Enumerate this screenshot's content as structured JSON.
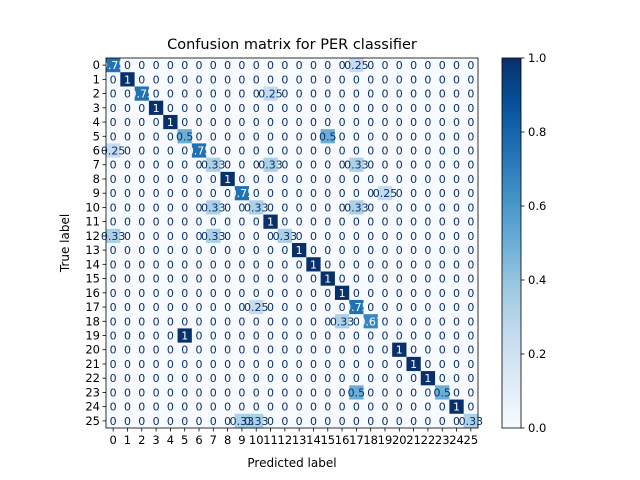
{
  "chart_data": {
    "type": "heatmap",
    "title": "Confusion matrix for PER classifier",
    "xlabel": "Predicted label",
    "ylabel": "True label",
    "x_tick_labels": [
      "0",
      "1",
      "2",
      "3",
      "4",
      "5",
      "6",
      "7",
      "8",
      "9",
      "10",
      "11",
      "12",
      "13",
      "14",
      "15",
      "16",
      "17",
      "18",
      "19",
      "20",
      "21",
      "22",
      "23",
      "24",
      "25"
    ],
    "y_tick_labels": [
      "0",
      "1",
      "2",
      "3",
      "4",
      "5",
      "6",
      "7",
      "8",
      "9",
      "10",
      "11",
      "12",
      "13",
      "14",
      "15",
      "16",
      "17",
      "18",
      "19",
      "20",
      "21",
      "22",
      "23",
      "24",
      "25"
    ],
    "colormap": "Blues",
    "color_range": [
      0.0,
      1.0
    ],
    "colorbar_ticks": [
      "0.0",
      "0.2",
      "0.4",
      "0.6",
      "0.8",
      "1.0"
    ],
    "colorbar_tick_values": [
      0.0,
      0.2,
      0.4,
      0.6,
      0.8,
      1.0
    ],
    "matrix": [
      [
        0.75,
        0,
        0,
        0,
        0,
        0,
        0,
        0,
        0,
        0,
        0,
        0,
        0,
        0,
        0,
        0,
        0,
        0.25,
        0,
        0,
        0,
        0,
        0,
        0,
        0,
        0
      ],
      [
        0,
        1,
        0,
        0,
        0,
        0,
        0,
        0,
        0,
        0,
        0,
        0,
        0,
        0,
        0,
        0,
        0,
        0,
        0,
        0,
        0,
        0,
        0,
        0,
        0,
        0
      ],
      [
        0,
        0,
        0.75,
        0,
        0,
        0,
        0,
        0,
        0,
        0,
        0,
        0.25,
        0,
        0,
        0,
        0,
        0,
        0,
        0,
        0,
        0,
        0,
        0,
        0,
        0,
        0
      ],
      [
        0,
        0,
        0,
        1,
        0,
        0,
        0,
        0,
        0,
        0,
        0,
        0,
        0,
        0,
        0,
        0,
        0,
        0,
        0,
        0,
        0,
        0,
        0,
        0,
        0,
        0
      ],
      [
        0,
        0,
        0,
        0,
        1,
        0,
        0,
        0,
        0,
        0,
        0,
        0,
        0,
        0,
        0,
        0,
        0,
        0,
        0,
        0,
        0,
        0,
        0,
        0,
        0,
        0
      ],
      [
        0,
        0,
        0,
        0,
        0,
        0.5,
        0,
        0,
        0,
        0,
        0,
        0,
        0,
        0,
        0,
        0.5,
        0,
        0,
        0,
        0,
        0,
        0,
        0,
        0,
        0,
        0
      ],
      [
        0.25,
        0,
        0,
        0,
        0,
        0,
        0.75,
        0,
        0,
        0,
        0,
        0,
        0,
        0,
        0,
        0,
        0,
        0,
        0,
        0,
        0,
        0,
        0,
        0,
        0,
        0
      ],
      [
        0,
        0,
        0,
        0,
        0,
        0,
        0,
        0.33,
        0,
        0,
        0,
        0.33,
        0,
        0,
        0,
        0,
        0,
        0.33,
        0,
        0,
        0,
        0,
        0,
        0,
        0,
        0
      ],
      [
        0,
        0,
        0,
        0,
        0,
        0,
        0,
        0,
        1,
        0,
        0,
        0,
        0,
        0,
        0,
        0,
        0,
        0,
        0,
        0,
        0,
        0,
        0,
        0,
        0,
        0
      ],
      [
        0,
        0,
        0,
        0,
        0,
        0,
        0,
        0,
        0,
        0.75,
        0,
        0,
        0,
        0,
        0,
        0,
        0,
        0,
        0,
        0.25,
        0,
        0,
        0,
        0,
        0,
        0
      ],
      [
        0,
        0,
        0,
        0,
        0,
        0,
        0,
        0.33,
        0,
        0,
        0.33,
        0,
        0,
        0,
        0,
        0,
        0,
        0.33,
        0,
        0,
        0,
        0,
        0,
        0,
        0,
        0
      ],
      [
        0,
        0,
        0,
        0,
        0,
        0,
        0,
        0,
        0,
        0,
        0,
        1,
        0,
        0,
        0,
        0,
        0,
        0,
        0,
        0,
        0,
        0,
        0,
        0,
        0,
        0
      ],
      [
        0.33,
        0,
        0,
        0,
        0,
        0,
        0,
        0.33,
        0,
        0,
        0,
        0,
        0.33,
        0,
        0,
        0,
        0,
        0,
        0,
        0,
        0,
        0,
        0,
        0,
        0,
        0
      ],
      [
        0,
        0,
        0,
        0,
        0,
        0,
        0,
        0,
        0,
        0,
        0,
        0,
        0,
        1,
        0,
        0,
        0,
        0,
        0,
        0,
        0,
        0,
        0,
        0,
        0,
        0
      ],
      [
        0,
        0,
        0,
        0,
        0,
        0,
        0,
        0,
        0,
        0,
        0,
        0,
        0,
        0,
        1,
        0,
        0,
        0,
        0,
        0,
        0,
        0,
        0,
        0,
        0,
        0
      ],
      [
        0,
        0,
        0,
        0,
        0,
        0,
        0,
        0,
        0,
        0,
        0,
        0,
        0,
        0,
        0,
        1,
        0,
        0,
        0,
        0,
        0,
        0,
        0,
        0,
        0,
        0
      ],
      [
        0,
        0,
        0,
        0,
        0,
        0,
        0,
        0,
        0,
        0,
        0,
        0,
        0,
        0,
        0,
        0,
        1,
        0,
        0,
        0,
        0,
        0,
        0,
        0,
        0,
        0
      ],
      [
        0,
        0,
        0,
        0,
        0,
        0,
        0,
        0,
        0,
        0,
        0.25,
        0,
        0,
        0,
        0,
        0,
        0,
        0.75,
        0,
        0,
        0,
        0,
        0,
        0,
        0,
        0
      ],
      [
        0,
        0,
        0,
        0,
        0,
        0,
        0,
        0,
        0,
        0,
        0,
        0,
        0,
        0,
        0,
        0,
        0.33,
        0,
        0.67,
        0,
        0,
        0,
        0,
        0,
        0,
        0
      ],
      [
        0,
        0,
        0,
        0,
        0,
        1,
        0,
        0,
        0,
        0,
        0,
        0,
        0,
        0,
        0,
        0,
        0,
        0,
        0,
        0,
        0,
        0,
        0,
        0,
        0,
        0
      ],
      [
        0,
        0,
        0,
        0,
        0,
        0,
        0,
        0,
        0,
        0,
        0,
        0,
        0,
        0,
        0,
        0,
        0,
        0,
        0,
        0,
        1,
        0,
        0,
        0,
        0,
        0
      ],
      [
        0,
        0,
        0,
        0,
        0,
        0,
        0,
        0,
        0,
        0,
        0,
        0,
        0,
        0,
        0,
        0,
        0,
        0,
        0,
        0,
        0,
        1,
        0,
        0,
        0,
        0
      ],
      [
        0,
        0,
        0,
        0,
        0,
        0,
        0,
        0,
        0,
        0,
        0,
        0,
        0,
        0,
        0,
        0,
        0,
        0,
        0,
        0,
        0,
        0,
        1,
        0,
        0,
        0
      ],
      [
        0,
        0,
        0,
        0,
        0,
        0,
        0,
        0,
        0,
        0,
        0,
        0,
        0,
        0,
        0,
        0,
        0,
        0.5,
        0,
        0,
        0,
        0,
        0,
        0.5,
        0,
        0
      ],
      [
        0,
        0,
        0,
        0,
        0,
        0,
        0,
        0,
        0,
        0,
        0,
        0,
        0,
        0,
        0,
        0,
        0,
        0,
        0,
        0,
        0,
        0,
        0,
        0,
        1,
        0
      ],
      [
        0,
        0,
        0,
        0,
        0,
        0,
        0,
        0,
        0,
        0.33,
        0.33,
        0,
        0,
        0,
        0,
        0,
        0,
        0,
        0,
        0,
        0,
        0,
        0,
        0,
        0,
        0.33
      ]
    ],
    "cell_labels": [
      [
        "0.75",
        "0",
        "0",
        "0",
        "0",
        "0",
        "0",
        "0",
        "0",
        "0",
        "0",
        "0",
        "0",
        "0",
        "0",
        "0",
        "0",
        "0.25",
        "0",
        "0",
        "0",
        "0",
        "0",
        "0",
        "0",
        "0"
      ],
      [
        "0",
        "1",
        "0",
        "0",
        "0",
        "0",
        "0",
        "0",
        "0",
        "0",
        "0",
        "0",
        "0",
        "0",
        "0",
        "0",
        "0",
        "0",
        "0",
        "0",
        "0",
        "0",
        "0",
        "0",
        "0",
        "0"
      ],
      [
        "0",
        "0",
        "0.75",
        "0",
        "0",
        "0",
        "0",
        "0",
        "0",
        "0",
        "0",
        "0.25",
        "0",
        "0",
        "0",
        "0",
        "0",
        "0",
        "0",
        "0",
        "0",
        "0",
        "0",
        "0",
        "0",
        "0"
      ],
      [
        "0",
        "0",
        "0",
        "1",
        "0",
        "0",
        "0",
        "0",
        "0",
        "0",
        "0",
        "0",
        "0",
        "0",
        "0",
        "0",
        "0",
        "0",
        "0",
        "0",
        "0",
        "0",
        "0",
        "0",
        "0",
        "0"
      ],
      [
        "0",
        "0",
        "0",
        "0",
        "1",
        "0",
        "0",
        "0",
        "0",
        "0",
        "0",
        "0",
        "0",
        "0",
        "0",
        "0",
        "0",
        "0",
        "0",
        "0",
        "0",
        "0",
        "0",
        "0",
        "0",
        "0"
      ],
      [
        "0",
        "0",
        "0",
        "0",
        "0",
        "0.5",
        "0",
        "0",
        "0",
        "0",
        "0",
        "0",
        "0",
        "0",
        "0",
        "0.5",
        "0",
        "0",
        "0",
        "0",
        "0",
        "0",
        "0",
        "0",
        "0",
        "0"
      ],
      [
        "0.25",
        "0",
        "0",
        "0",
        "0",
        "0",
        "0.75",
        "0",
        "0",
        "0",
        "0",
        "0",
        "0",
        "0",
        "0",
        "0",
        "0",
        "0",
        "0",
        "0",
        "0",
        "0",
        "0",
        "0",
        "0",
        "0"
      ],
      [
        "0",
        "0",
        "0",
        "0",
        "0",
        "0",
        "0",
        "0.33",
        "0",
        "0",
        "0",
        "0.33",
        "0",
        "0",
        "0",
        "0",
        "0",
        "0.33",
        "0",
        "0",
        "0",
        "0",
        "0",
        "0",
        "0",
        "0"
      ],
      [
        "0",
        "0",
        "0",
        "0",
        "0",
        "0",
        "0",
        "0",
        "1",
        "0",
        "0",
        "0",
        "0",
        "0",
        "0",
        "0",
        "0",
        "0",
        "0",
        "0",
        "0",
        "0",
        "0",
        "0",
        "0",
        "0"
      ],
      [
        "0",
        "0",
        "0",
        "0",
        "0",
        "0",
        "0",
        "0",
        "0",
        "0.75",
        "0",
        "0",
        "0",
        "0",
        "0",
        "0",
        "0",
        "0",
        "0",
        "0.25",
        "0",
        "0",
        "0",
        "0",
        "0",
        "0"
      ],
      [
        "0",
        "0",
        "0",
        "0",
        "0",
        "0",
        "0",
        "0.33",
        "0",
        "0",
        "0.33",
        "0",
        "0",
        "0",
        "0",
        "0",
        "0",
        "0.33",
        "0",
        "0",
        "0",
        "0",
        "0",
        "0",
        "0",
        "0"
      ],
      [
        "0",
        "0",
        "0",
        "0",
        "0",
        "0",
        "0",
        "0",
        "0",
        "0",
        "0",
        "1",
        "0",
        "0",
        "0",
        "0",
        "0",
        "0",
        "0",
        "0",
        "0",
        "0",
        "0",
        "0",
        "0",
        "0"
      ],
      [
        "0.33",
        "0",
        "0",
        "0",
        "0",
        "0",
        "0",
        "0.33",
        "0",
        "0",
        "0",
        "0",
        "0.33",
        "0",
        "0",
        "0",
        "0",
        "0",
        "0",
        "0",
        "0",
        "0",
        "0",
        "0",
        "0",
        "0"
      ],
      [
        "0",
        "0",
        "0",
        "0",
        "0",
        "0",
        "0",
        "0",
        "0",
        "0",
        "0",
        "0",
        "0",
        "1",
        "0",
        "0",
        "0",
        "0",
        "0",
        "0",
        "0",
        "0",
        "0",
        "0",
        "0",
        "0"
      ],
      [
        "0",
        "0",
        "0",
        "0",
        "0",
        "0",
        "0",
        "0",
        "0",
        "0",
        "0",
        "0",
        "0",
        "0",
        "1",
        "0",
        "0",
        "0",
        "0",
        "0",
        "0",
        "0",
        "0",
        "0",
        "0",
        "0"
      ],
      [
        "0",
        "0",
        "0",
        "0",
        "0",
        "0",
        "0",
        "0",
        "0",
        "0",
        "0",
        "0",
        "0",
        "0",
        "0",
        "1",
        "0",
        "0",
        "0",
        "0",
        "0",
        "0",
        "0",
        "0",
        "0",
        "0"
      ],
      [
        "0",
        "0",
        "0",
        "0",
        "0",
        "0",
        "0",
        "0",
        "0",
        "0",
        "0",
        "0",
        "0",
        "0",
        "0",
        "0",
        "1",
        "0",
        "0",
        "0",
        "0",
        "0",
        "0",
        "0",
        "0",
        "0"
      ],
      [
        "0",
        "0",
        "0",
        "0",
        "0",
        "0",
        "0",
        "0",
        "0",
        "0",
        "0.25",
        "0",
        "0",
        "0",
        "0",
        "0",
        "0",
        "0.75",
        "0",
        "0",
        "0",
        "0",
        "0",
        "0",
        "0",
        "0"
      ],
      [
        "0",
        "0",
        "0",
        "0",
        "0",
        "0",
        "0",
        "0",
        "0",
        "0",
        "0",
        "0",
        "0",
        "0",
        "0",
        "0",
        "0.33",
        "0",
        "0.67",
        "0",
        "0",
        "0",
        "0",
        "0",
        "0",
        "0"
      ],
      [
        "0",
        "0",
        "0",
        "0",
        "0",
        "1",
        "0",
        "0",
        "0",
        "0",
        "0",
        "0",
        "0",
        "0",
        "0",
        "0",
        "0",
        "0",
        "0",
        "0",
        "0",
        "0",
        "0",
        "0",
        "0",
        "0"
      ],
      [
        "0",
        "0",
        "0",
        "0",
        "0",
        "0",
        "0",
        "0",
        "0",
        "0",
        "0",
        "0",
        "0",
        "0",
        "0",
        "0",
        "0",
        "0",
        "0",
        "0",
        "1",
        "0",
        "0",
        "0",
        "0",
        "0"
      ],
      [
        "0",
        "0",
        "0",
        "0",
        "0",
        "0",
        "0",
        "0",
        "0",
        "0",
        "0",
        "0",
        "0",
        "0",
        "0",
        "0",
        "0",
        "0",
        "0",
        "0",
        "0",
        "1",
        "0",
        "0",
        "0",
        "0"
      ],
      [
        "0",
        "0",
        "0",
        "0",
        "0",
        "0",
        "0",
        "0",
        "0",
        "0",
        "0",
        "0",
        "0",
        "0",
        "0",
        "0",
        "0",
        "0",
        "0",
        "0",
        "0",
        "0",
        "1",
        "0",
        "0",
        "0"
      ],
      [
        "0",
        "0",
        "0",
        "0",
        "0",
        "0",
        "0",
        "0",
        "0",
        "0",
        "0",
        "0",
        "0",
        "0",
        "0",
        "0",
        "0",
        "0.5",
        "0",
        "0",
        "0",
        "0",
        "0",
        "0.5",
        "0",
        "0"
      ],
      [
        "0",
        "0",
        "0",
        "0",
        "0",
        "0",
        "0",
        "0",
        "0",
        "0",
        "0",
        "0",
        "0",
        "0",
        "0",
        "0",
        "0",
        "0",
        "0",
        "0",
        "0",
        "0",
        "0",
        "0",
        "1",
        "0"
      ],
      [
        "0",
        "0",
        "0",
        "0",
        "0",
        "0",
        "0",
        "0",
        "0",
        "0.33",
        "0.33",
        "0",
        "0",
        "0",
        "0",
        "0",
        "0",
        "0",
        "0",
        "0",
        "0",
        "0",
        "0",
        "0",
        "0",
        "0.33"
      ]
    ],
    "grid": false,
    "colorbar": "right"
  }
}
